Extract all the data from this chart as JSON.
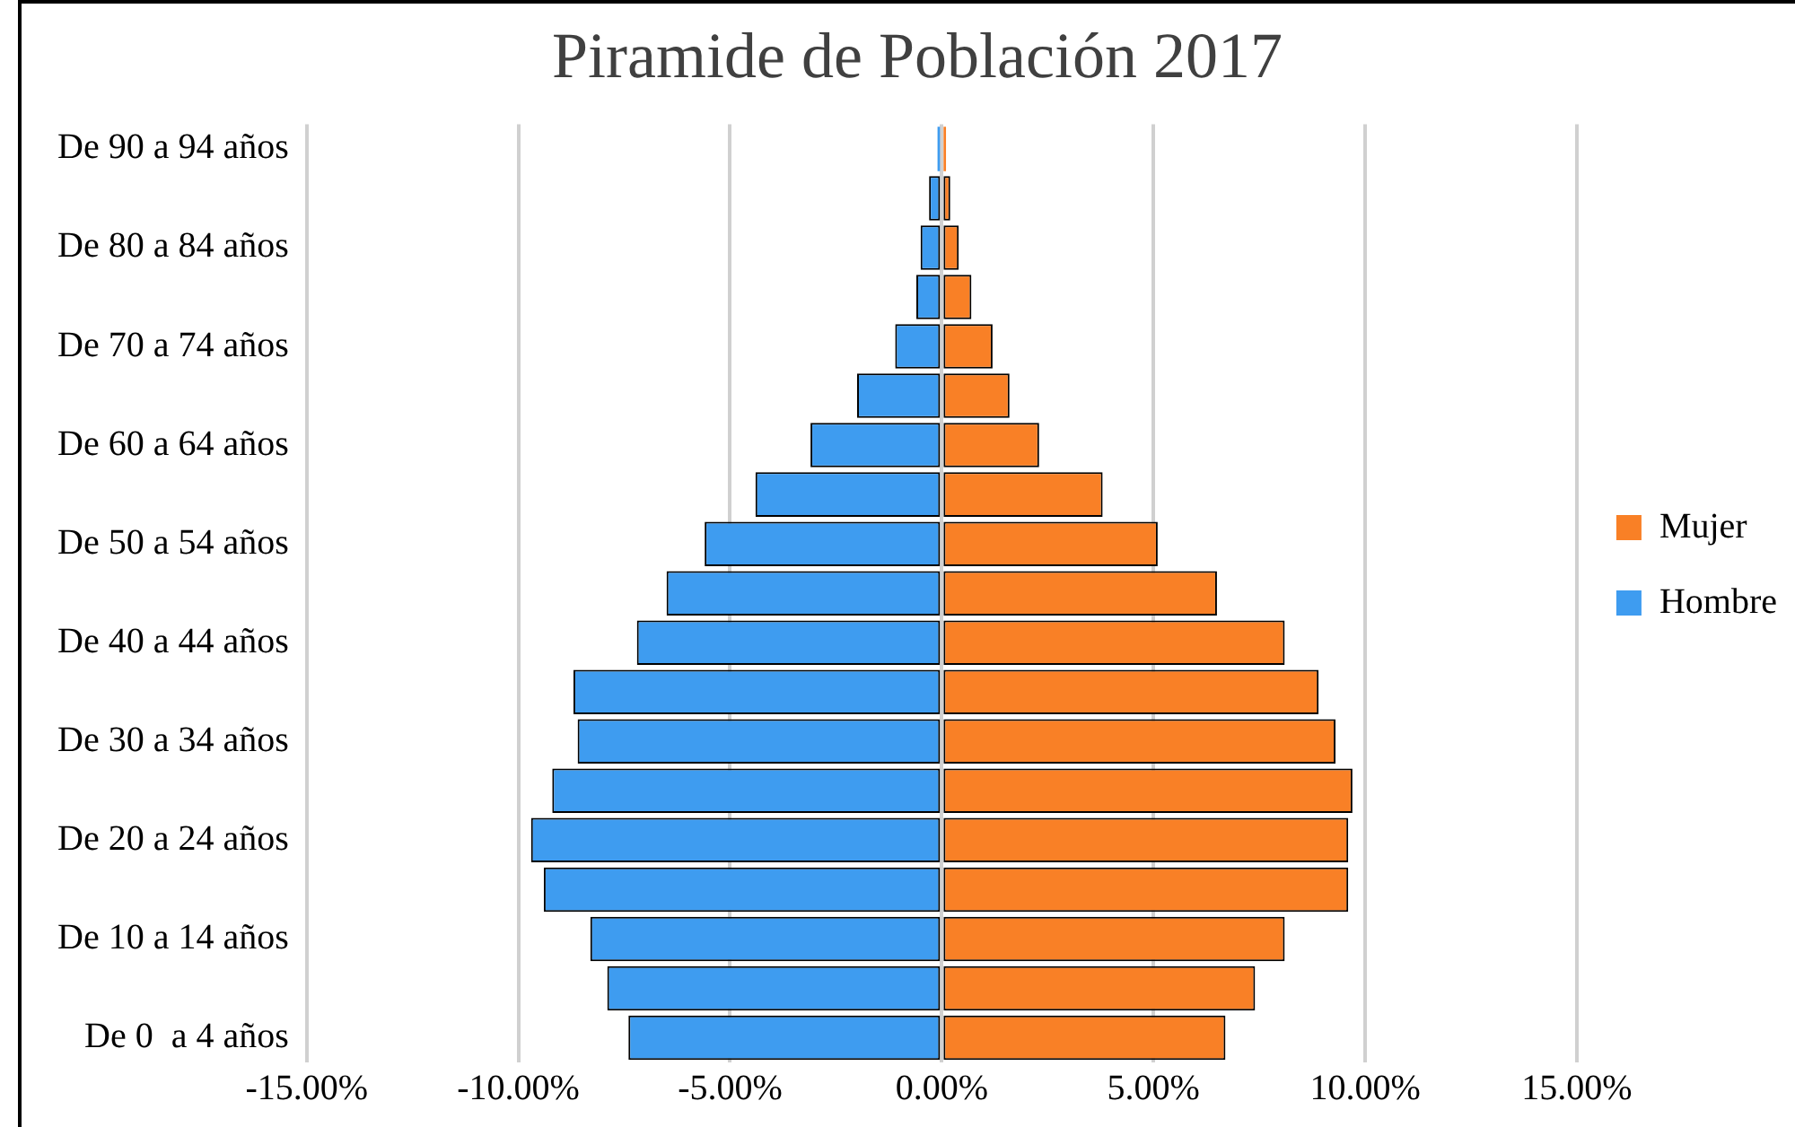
{
  "chart_data": {
    "type": "bar",
    "orientation": "horizontal",
    "stacked": true,
    "title": "Piramide de Población 2017",
    "categories": [
      "De 90 a 94 años",
      null,
      "De 80 a 84 años",
      null,
      "De 70 a 74 años",
      null,
      "De 60 a 64 años",
      null,
      "De 50 a 54 años",
      null,
      "De 40 a 44 años",
      null,
      "De 30 a 34 años",
      null,
      "De 20 a 24 años",
      null,
      "De 10 a 14 años",
      null,
      "De 0  a 4 años"
    ],
    "series": [
      {
        "name": "Mujer",
        "color": "#f98026",
        "values": [
          0.1,
          0.2,
          0.4,
          0.7,
          1.2,
          1.6,
          2.3,
          3.8,
          5.1,
          6.5,
          8.1,
          8.9,
          9.3,
          9.7,
          9.6,
          9.6,
          8.1,
          7.4,
          6.7
        ]
      },
      {
        "name": "Hombre",
        "color": "#3e9cf0",
        "values": [
          -0.1,
          -0.3,
          -0.5,
          -0.6,
          -1.1,
          -2.0,
          -3.1,
          -4.4,
          -5.6,
          -6.5,
          -7.2,
          -8.7,
          -8.6,
          -9.2,
          -9.7,
          -9.4,
          -8.3,
          -7.9,
          -7.4
        ]
      }
    ],
    "xlim": [
      -15,
      15
    ],
    "xticks": [
      {
        "value": -15,
        "label": "-15.00%"
      },
      {
        "value": -10,
        "label": "-10.00%"
      },
      {
        "value": -5,
        "label": "-5.00%"
      },
      {
        "value": 0,
        "label": "0.00%"
      },
      {
        "value": 5,
        "label": "5.00%"
      },
      {
        "value": 10,
        "label": "10.00%"
      },
      {
        "value": 15,
        "label": "15.00%"
      }
    ],
    "grid": "x",
    "legend": "right"
  }
}
